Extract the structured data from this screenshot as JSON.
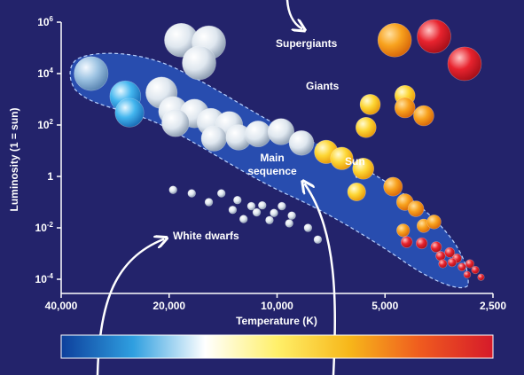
{
  "chart_data": {
    "type": "scatter",
    "title": "",
    "xlabel": "Temperature (K)",
    "ylabel": "Luminosity (1 = sun)",
    "x_scale": "log",
    "x_reversed": true,
    "xlim": [
      40000,
      2500
    ],
    "y_scale": "log",
    "ylim": [
      0.0001,
      1000000
    ],
    "grid": false,
    "x_ticks": [
      {
        "value": 40000,
        "label": "40,000"
      },
      {
        "value": 20000,
        "label": "20,000"
      },
      {
        "value": 10000,
        "label": "10,000"
      },
      {
        "value": 5000,
        "label": "5,000"
      },
      {
        "value": 2500,
        "label": "2,500"
      }
    ],
    "y_ticks": [
      {
        "value": 1000000,
        "base": "10",
        "exp": "6"
      },
      {
        "value": 10000,
        "base": "10",
        "exp": "4"
      },
      {
        "value": 100,
        "base": "10",
        "exp": "2"
      },
      {
        "value": 1,
        "base": "1",
        "exp": ""
      },
      {
        "value": 0.01,
        "base": "10",
        "exp": "-2"
      },
      {
        "value": 0.0001,
        "base": "10",
        "exp": "-4"
      }
    ],
    "annotations": {
      "supergiants": "Supergiants",
      "giants": "Giants",
      "sun": "Sun",
      "main_sequence_line1": "Main",
      "main_sequence_line2": "sequence",
      "white_dwarfs": "White dwarfs"
    },
    "colorbar": {
      "stops": [
        "#0d3f9c",
        "#2f9fe0",
        "#ffffff",
        "#fff06a",
        "#f7b71a",
        "#ef5a1f",
        "#d61a2a"
      ]
    },
    "colors": {
      "background": "#23236b",
      "main_sequence_band": "#2b5cc6",
      "axis": "#ffffff"
    },
    "series": [
      {
        "name": "Supergiants",
        "points": [
          {
            "x": 18500,
            "y": 200000,
            "color": "white"
          },
          {
            "x": 15500,
            "y": 160000,
            "color": "white"
          },
          {
            "x": 16500,
            "y": 26000,
            "color": "white"
          },
          {
            "x": 4700,
            "y": 200000,
            "color": "orange"
          },
          {
            "x": 3650,
            "y": 280000,
            "color": "red"
          },
          {
            "x": 3000,
            "y": 24000,
            "color": "red"
          }
        ]
      },
      {
        "name": "Giants",
        "points": [
          {
            "x": 5500,
            "y": 630,
            "color": "yellow"
          },
          {
            "x": 4400,
            "y": 1400,
            "color": "yellow"
          },
          {
            "x": 4400,
            "y": 470,
            "color": "orange"
          },
          {
            "x": 3900,
            "y": 230,
            "color": "orange"
          },
          {
            "x": 5650,
            "y": 80,
            "color": "yellow"
          }
        ]
      },
      {
        "name": "Main sequence",
        "points": [
          {
            "x": 33000,
            "y": 10000,
            "color": "blue-white"
          },
          {
            "x": 26500,
            "y": 1300,
            "color": "blue"
          },
          {
            "x": 21000,
            "y": 1800,
            "color": "white"
          },
          {
            "x": 25800,
            "y": 300,
            "color": "blue"
          },
          {
            "x": 19500,
            "y": 350,
            "color": "white"
          },
          {
            "x": 17000,
            "y": 280,
            "color": "white"
          },
          {
            "x": 19200,
            "y": 120,
            "color": "white"
          },
          {
            "x": 15300,
            "y": 130,
            "color": "white"
          },
          {
            "x": 13600,
            "y": 100,
            "color": "white"
          },
          {
            "x": 15000,
            "y": 30,
            "color": "white"
          },
          {
            "x": 12800,
            "y": 33,
            "color": "white"
          },
          {
            "x": 11300,
            "y": 45,
            "color": "white"
          },
          {
            "x": 9750,
            "y": 55,
            "color": "white"
          },
          {
            "x": 8550,
            "y": 20,
            "color": "white"
          },
          {
            "x": 7300,
            "y": 9,
            "color": "yellow"
          },
          {
            "x": 6600,
            "y": 5,
            "color": "yellow"
          },
          {
            "x": 5750,
            "y": 2,
            "color": "yellow"
          },
          {
            "x": 6000,
            "y": 0.25,
            "color": "yellow"
          },
          {
            "x": 4750,
            "y": 0.4,
            "color": "orange"
          },
          {
            "x": 4400,
            "y": 0.1,
            "color": "orange"
          },
          {
            "x": 4100,
            "y": 0.055,
            "color": "orange"
          },
          {
            "x": 4450,
            "y": 0.008,
            "color": "orange"
          },
          {
            "x": 3900,
            "y": 0.012,
            "color": "orange"
          },
          {
            "x": 3650,
            "y": 0.017,
            "color": "orange"
          },
          {
            "x": 4350,
            "y": 0.0028,
            "color": "red"
          },
          {
            "x": 3950,
            "y": 0.0025,
            "color": "red"
          },
          {
            "x": 3600,
            "y": 0.0018,
            "color": "red"
          },
          {
            "x": 3500,
            "y": 0.0008,
            "color": "red"
          },
          {
            "x": 3300,
            "y": 0.0011,
            "color": "red"
          },
          {
            "x": 3150,
            "y": 0.00065,
            "color": "red"
          },
          {
            "x": 3450,
            "y": 0.0004,
            "color": "red"
          },
          {
            "x": 3250,
            "y": 0.00045,
            "color": "red"
          },
          {
            "x": 3050,
            "y": 0.0003,
            "color": "red"
          },
          {
            "x": 2900,
            "y": 0.0004,
            "color": "red"
          },
          {
            "x": 2950,
            "y": 0.00015,
            "color": "red"
          },
          {
            "x": 2800,
            "y": 0.00023,
            "color": "red"
          },
          {
            "x": 2700,
            "y": 0.00012,
            "color": "red"
          }
        ]
      },
      {
        "name": "White dwarfs",
        "points": [
          {
            "x": 19500,
            "y": 0.3,
            "color": "white"
          },
          {
            "x": 17300,
            "y": 0.22,
            "color": "white"
          },
          {
            "x": 14300,
            "y": 0.22,
            "color": "white"
          },
          {
            "x": 12900,
            "y": 0.12,
            "color": "white"
          },
          {
            "x": 15500,
            "y": 0.1,
            "color": "white"
          },
          {
            "x": 11800,
            "y": 0.07,
            "color": "white"
          },
          {
            "x": 11000,
            "y": 0.075,
            "color": "white"
          },
          {
            "x": 9700,
            "y": 0.07,
            "color": "white"
          },
          {
            "x": 13300,
            "y": 0.05,
            "color": "white"
          },
          {
            "x": 11400,
            "y": 0.04,
            "color": "white"
          },
          {
            "x": 10200,
            "y": 0.038,
            "color": "white"
          },
          {
            "x": 9100,
            "y": 0.03,
            "color": "white"
          },
          {
            "x": 12400,
            "y": 0.022,
            "color": "white"
          },
          {
            "x": 10500,
            "y": 0.02,
            "color": "white"
          },
          {
            "x": 9250,
            "y": 0.015,
            "color": "white"
          },
          {
            "x": 8200,
            "y": 0.01,
            "color": "white"
          },
          {
            "x": 7700,
            "y": 0.0035,
            "color": "white"
          }
        ]
      }
    ]
  }
}
